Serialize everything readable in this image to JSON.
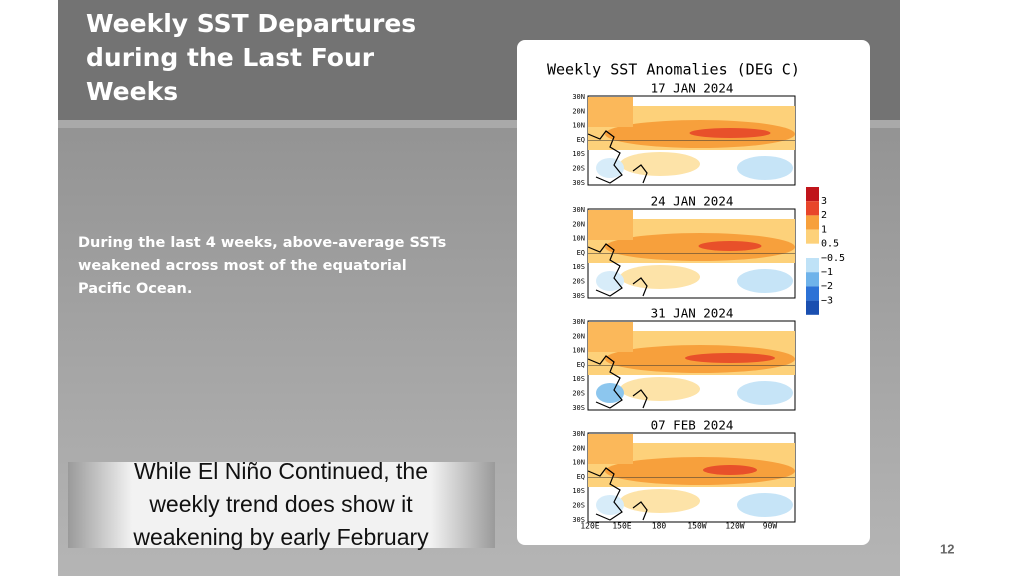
{
  "slide": {
    "title_lines": [
      "Weekly SST Departures",
      "during the Last Four",
      "Weeks"
    ],
    "body_lines": [
      "During the last 4 weeks, above-average SSTs",
      "weakened across most of the equatorial",
      "Pacific Ocean."
    ],
    "callout_lines": [
      "While El Niño Continued, the",
      "weekly trend does show it",
      "weakening by early February"
    ],
    "page_number": "12"
  },
  "figure": {
    "title": "Weekly SST Anomalies (DEG C)",
    "maps": [
      {
        "date": "17 JAN 2024"
      },
      {
        "date": "24 JAN 2024"
      },
      {
        "date": "31 JAN 2024"
      },
      {
        "date": "07 FEB 2024"
      }
    ],
    "lat_labels": [
      "30N",
      "20N",
      "10N",
      "EQ",
      "10S",
      "20S",
      "30S"
    ],
    "lon_labels": [
      "120E",
      "150E",
      "180",
      "150W",
      "120W",
      "90W"
    ],
    "legend_labels": [
      "3",
      "2",
      "1",
      "0.5",
      "−0.5",
      "−1",
      "−2",
      "−3"
    ]
  }
}
